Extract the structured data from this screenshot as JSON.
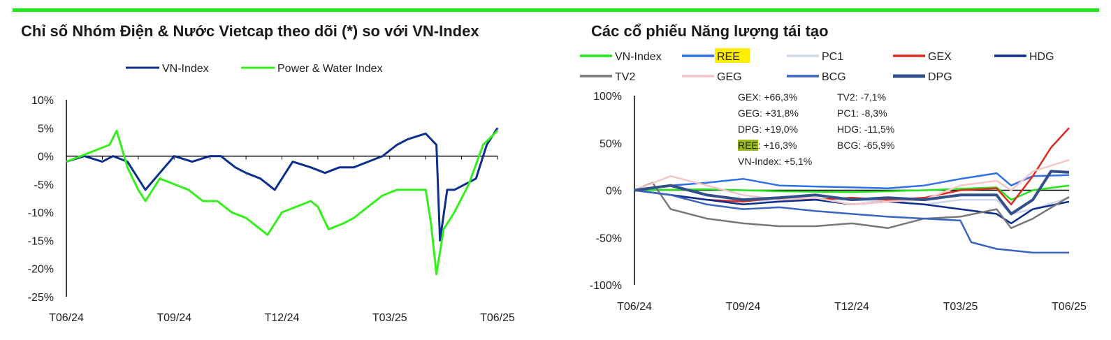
{
  "left": {
    "title": "Chỉ số Nhóm Điện & Nước Vietcap theo dõi (*) so với VN-Index"
  },
  "right": {
    "title": "Các cổ phiếu Năng lượng tái tạo",
    "annotations": [
      "GEX: +66,3%",
      "GEG: +31,8%",
      "DPG: +19,0%",
      "REE",
      ": +16,3%",
      "VN-Index: +5,1%",
      "TV2: -7,1%",
      "PC1: -8,3%",
      "HDG: -11,5%",
      "BCG: -65,9%"
    ]
  },
  "chart_data": [
    {
      "type": "line",
      "title": "Chỉ số Nhóm Điện & Nước Vietcap theo dõi (*) so với VN-Index",
      "xlabel": "",
      "ylabel": "",
      "ylim": [
        -25,
        10
      ],
      "yticks": [
        "10%",
        "5%",
        "0%",
        "-5%",
        "-10%",
        "-15%",
        "-20%",
        "-25%"
      ],
      "yvals": [
        10,
        5,
        0,
        -5,
        -10,
        -15,
        -20,
        -25
      ],
      "xticks": [
        "T06/24",
        "T09/24",
        "T12/24",
        "T03/25",
        "T06/25"
      ],
      "xtick_months": [
        0,
        3,
        6,
        9,
        12
      ],
      "legend": "top",
      "series": [
        {
          "name": "VN-Index",
          "color": "#0d2f8c",
          "x": [
            0,
            0.5,
            1,
            1.3,
            1.7,
            2.2,
            2.6,
            3,
            3.5,
            4,
            4.3,
            4.7,
            5,
            5.4,
            5.8,
            6.3,
            6.8,
            7.2,
            7.6,
            8,
            8.4,
            8.8,
            9.2,
            9.5,
            10,
            10.15,
            10.3,
            10.4,
            10.6,
            10.8,
            11.1,
            11.4,
            11.7,
            12
          ],
          "y": [
            -1,
            0,
            -1,
            0,
            -1,
            -6,
            -3,
            0,
            -1,
            0,
            0,
            -2,
            -3,
            -4,
            -6,
            -1,
            -2,
            -3,
            -2,
            -2,
            -1,
            0,
            2,
            3,
            4,
            3,
            2,
            -15,
            -6,
            -6,
            -5,
            -4,
            2,
            5
          ]
        },
        {
          "name": "Power & Water Index",
          "color": "#33f01c",
          "x": [
            0,
            0.4,
            0.8,
            1.2,
            1.4,
            1.7,
            2,
            2.2,
            2.6,
            3,
            3.4,
            3.8,
            4.2,
            4.6,
            5,
            5.4,
            5.6,
            6,
            6.4,
            6.8,
            7,
            7.3,
            7.7,
            8,
            8.4,
            8.8,
            9.2,
            9.6,
            10,
            10.15,
            10.3,
            10.5,
            10.8,
            11.2,
            11.6,
            12
          ],
          "y": [
            -1,
            0,
            1,
            2,
            4.5,
            -2,
            -6,
            -8,
            -4,
            -5,
            -6,
            -8,
            -8,
            -10,
            -11,
            -13,
            -14,
            -10,
            -9,
            -8,
            -9,
            -13,
            -12,
            -11,
            -9,
            -7,
            -6,
            -6,
            -6,
            -12,
            -21,
            -13,
            -10,
            -5,
            2,
            4.5
          ]
        }
      ]
    },
    {
      "type": "line",
      "title": "Các cổ phiếu Năng lượng tái tạo",
      "ylim": [
        -100,
        100
      ],
      "yticks": [
        "100%",
        "50%",
        "0%",
        "-50%",
        "-100%"
      ],
      "yvals": [
        100,
        50,
        0,
        -50,
        -100
      ],
      "xticks": [
        "T06/24",
        "T09/24",
        "T12/24",
        "T03/25",
        "T06/25"
      ],
      "xtick_months": [
        0,
        3,
        6,
        9,
        12
      ],
      "legend": "top",
      "series": [
        {
          "name": "VN-Index",
          "color": "#22e51c",
          "width": 2.5,
          "x": [
            0,
            2,
            4,
            6,
            8,
            10,
            10.4,
            11,
            12
          ],
          "y": [
            0,
            1,
            -1,
            -2,
            0,
            3,
            -10,
            0,
            5
          ]
        },
        {
          "name": "REE",
          "color": "#2f6fe8",
          "width": 2.5,
          "x": [
            0,
            1,
            2,
            3,
            4,
            5,
            6,
            7,
            8,
            9,
            10,
            10.4,
            11,
            12
          ],
          "y": [
            0,
            5,
            8,
            12,
            5,
            4,
            3,
            2,
            5,
            12,
            18,
            5,
            15,
            16
          ]
        },
        {
          "name": "PC1",
          "color": "#cdd6ea",
          "width": 2.5,
          "x": [
            0,
            1,
            2,
            3,
            4,
            5,
            6,
            7,
            8,
            9,
            10,
            10.4,
            11,
            12
          ],
          "y": [
            0,
            5,
            -5,
            -10,
            -12,
            -10,
            -10,
            -12,
            -15,
            -10,
            -10,
            -25,
            -20,
            -8
          ]
        },
        {
          "name": "GEX",
          "color": "#d92a1e",
          "width": 2.5,
          "x": [
            0,
            1,
            2,
            3,
            4,
            5,
            6,
            7,
            8,
            9,
            10,
            10.4,
            11,
            11.5,
            12
          ],
          "y": [
            0,
            -5,
            -10,
            -12,
            -8,
            -10,
            -8,
            -10,
            -8,
            0,
            2,
            -15,
            15,
            45,
            66
          ]
        },
        {
          "name": "HDG",
          "color": "#0d2f8c",
          "width": 2.5,
          "x": [
            0,
            1,
            2,
            3,
            4,
            5,
            6,
            7,
            8,
            9,
            10,
            10.4,
            11,
            12
          ],
          "y": [
            0,
            -5,
            -10,
            -15,
            -12,
            -10,
            -15,
            -12,
            -15,
            -20,
            -25,
            -35,
            -20,
            -12
          ]
        },
        {
          "name": "TV2",
          "color": "#777777",
          "width": 2.5,
          "x": [
            0,
            0.5,
            1,
            2,
            3,
            4,
            5,
            6,
            7,
            8,
            9,
            10,
            10.4,
            11,
            12
          ],
          "y": [
            0,
            8,
            -20,
            -30,
            -35,
            -38,
            -38,
            -35,
            -40,
            -30,
            -28,
            -20,
            -40,
            -30,
            -7
          ]
        },
        {
          "name": "GEG",
          "color": "#f5c6c6",
          "width": 2.5,
          "x": [
            0,
            1,
            2,
            3,
            4,
            5,
            6,
            7,
            8,
            9,
            10,
            10.4,
            11,
            12
          ],
          "y": [
            0,
            15,
            5,
            -5,
            -10,
            -8,
            -15,
            -12,
            -10,
            5,
            10,
            0,
            20,
            32
          ]
        },
        {
          "name": "BCG",
          "color": "#3a64c0",
          "width": 2.5,
          "x": [
            0,
            1,
            2,
            3,
            4,
            5,
            6,
            7,
            8,
            9,
            9.3,
            10,
            11,
            12
          ],
          "y": [
            0,
            -5,
            -15,
            -20,
            -18,
            -22,
            -25,
            -28,
            -30,
            -32,
            -55,
            -62,
            -66,
            -66
          ]
        },
        {
          "name": "DPG",
          "color": "#34508a",
          "width": 4,
          "x": [
            0,
            1,
            2,
            3,
            4,
            5,
            6,
            7,
            8,
            9,
            10,
            10.4,
            11,
            11.5,
            12
          ],
          "y": [
            0,
            5,
            -5,
            -10,
            -8,
            -5,
            -10,
            -8,
            -10,
            -5,
            -5,
            -25,
            -10,
            20,
            19
          ]
        }
      ]
    }
  ]
}
